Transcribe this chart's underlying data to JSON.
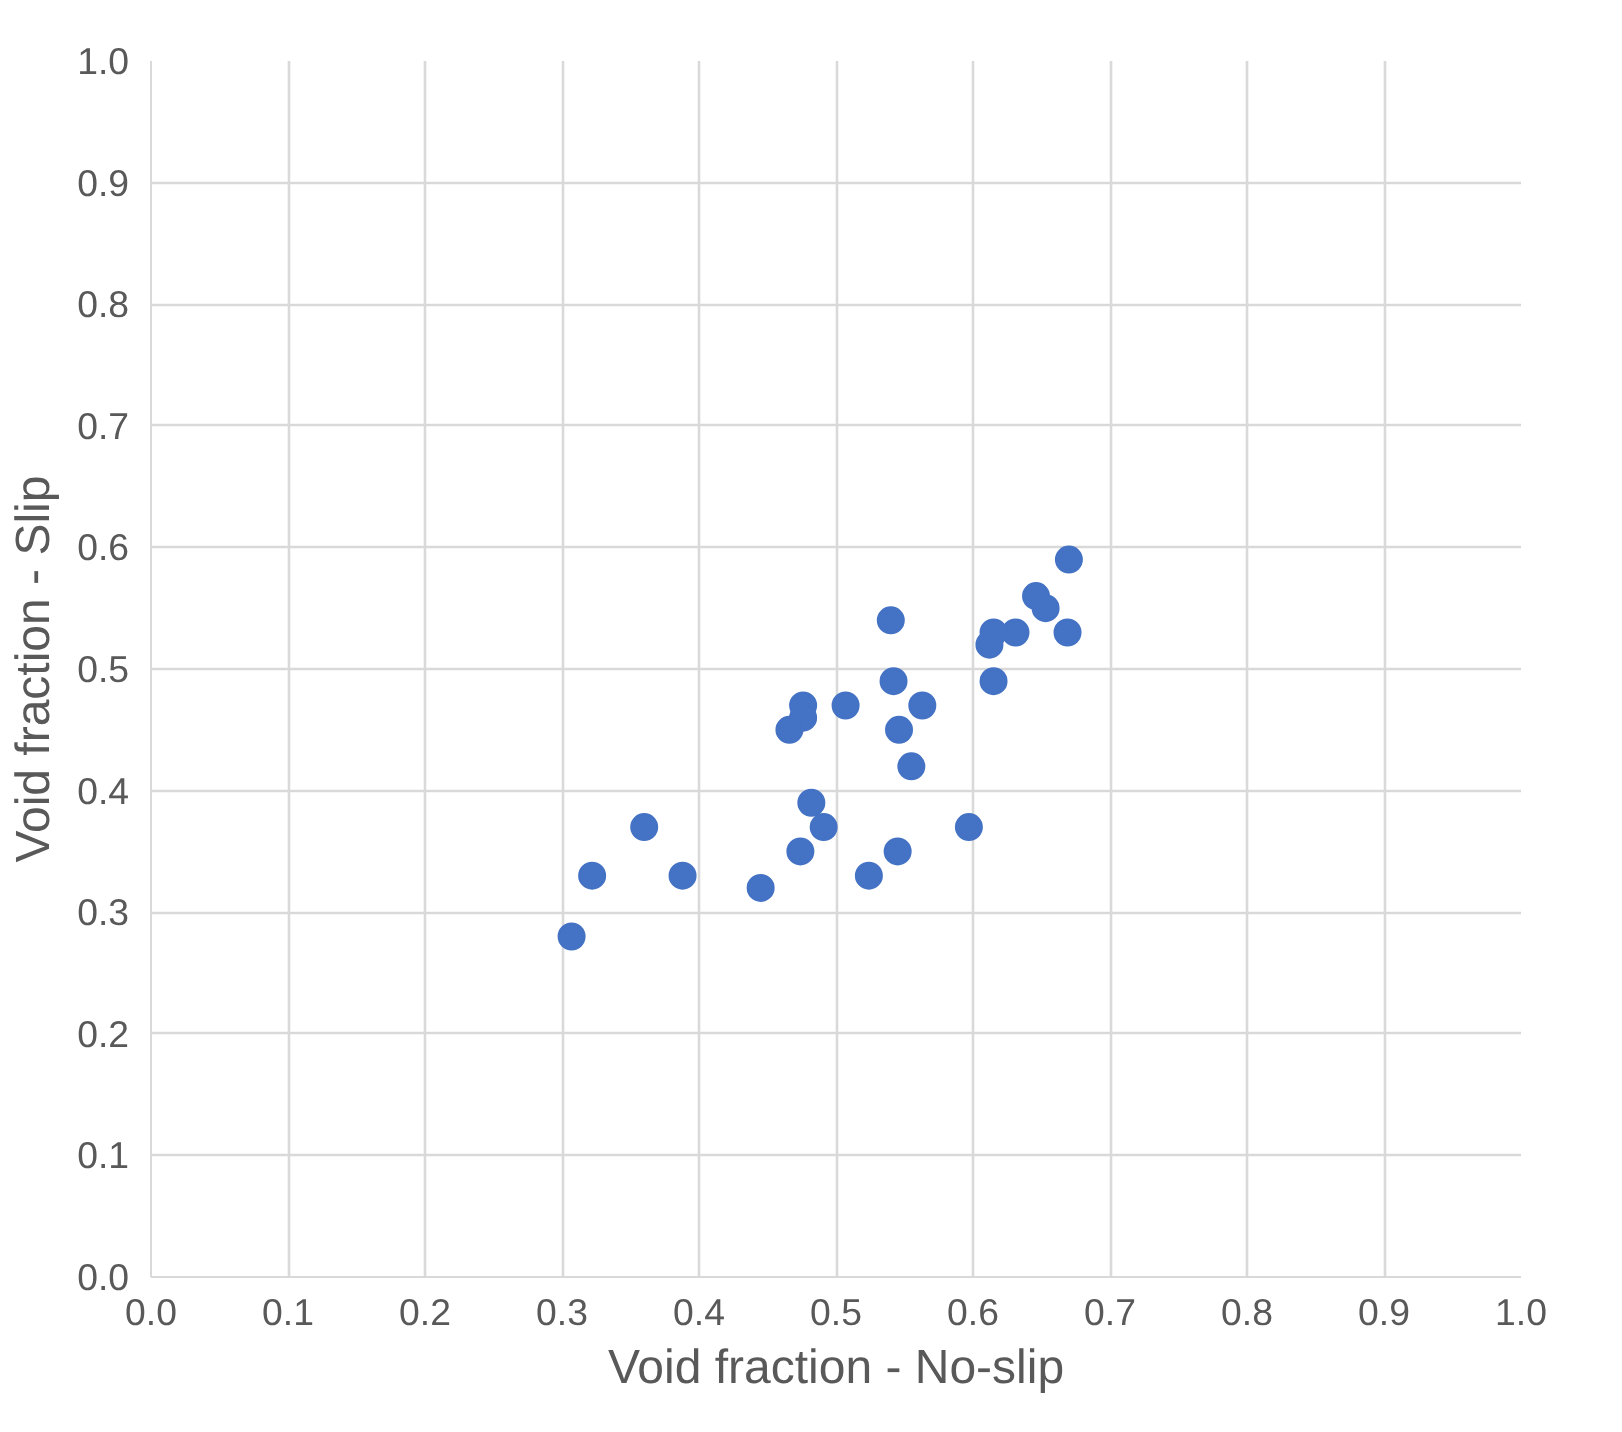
{
  "chart_data": {
    "type": "scatter",
    "xlabel": "Void fraction - No-slip",
    "ylabel": "Void fraction - Slip",
    "x": [
      0.67,
      0.646,
      0.653,
      0.669,
      0.631,
      0.615,
      0.612,
      0.615,
      0.54,
      0.542,
      0.563,
      0.546,
      0.555,
      0.507,
      0.476,
      0.476,
      0.466,
      0.482,
      0.491,
      0.474,
      0.545,
      0.524,
      0.597,
      0.445,
      0.388,
      0.36,
      0.322,
      0.307
    ],
    "series": [
      {
        "color": "#4472c4",
        "values": [
          0.59,
          0.56,
          0.55,
          0.53,
          0.53,
          0.53,
          0.52,
          0.49,
          0.54,
          0.49,
          0.47,
          0.45,
          0.42,
          0.47,
          0.47,
          0.46,
          0.45,
          0.39,
          0.37,
          0.35,
          0.35,
          0.33,
          0.37,
          0.32,
          0.33,
          0.37,
          0.33,
          0.28
        ]
      }
    ],
    "xlim": [
      0,
      1
    ],
    "ylim": [
      0,
      1
    ],
    "xticks": [
      {
        "value": 0,
        "label": "0.0"
      },
      {
        "value": 0.1,
        "label": "0.1"
      },
      {
        "value": 0.2,
        "label": "0.2"
      },
      {
        "value": 0.3,
        "label": "0.3"
      },
      {
        "value": 0.4,
        "label": "0.4"
      },
      {
        "value": 0.5,
        "label": "0.5"
      },
      {
        "value": 0.6,
        "label": "0.6"
      },
      {
        "value": 0.7,
        "label": "0.7"
      },
      {
        "value": 0.8,
        "label": "0.8"
      },
      {
        "value": 0.9,
        "label": "0.9"
      },
      {
        "value": 1,
        "label": "1.0"
      }
    ],
    "yticks": [
      {
        "value": 0,
        "label": "0.0"
      },
      {
        "value": 0.1,
        "label": "0.1"
      },
      {
        "value": 0.2,
        "label": "0.2"
      },
      {
        "value": 0.3,
        "label": "0.3"
      },
      {
        "value": 0.4,
        "label": "0.4"
      },
      {
        "value": 0.5,
        "label": "0.5"
      },
      {
        "value": 0.6,
        "label": "0.6"
      },
      {
        "value": 0.7,
        "label": "0.7"
      },
      {
        "value": 0.8,
        "label": "0.8"
      },
      {
        "value": 0.9,
        "label": "0.9"
      },
      {
        "value": 1,
        "label": "1.0"
      }
    ],
    "grid": true,
    "marker": "circle"
  }
}
